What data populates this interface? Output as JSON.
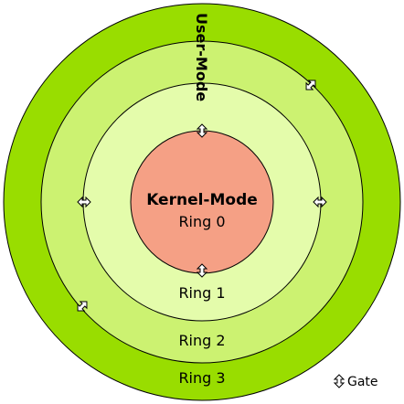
{
  "diagram": {
    "rings": [
      {
        "id": "ring3",
        "label": "Ring 3",
        "color": "#99dd00"
      },
      {
        "id": "ring2",
        "label": "Ring 2",
        "color": "#ccf271"
      },
      {
        "id": "ring1",
        "label": "Ring 1",
        "color": "#e4fcab"
      },
      {
        "id": "ring0",
        "label": "Ring 0",
        "color": "#f5a085"
      }
    ],
    "kernel_mode_label": "Kernel-Mode",
    "user_mode_label": "User-Mode",
    "legend": {
      "icon": "gate-arrow-icon",
      "label": "Gate"
    },
    "outline_color": "#000000"
  }
}
